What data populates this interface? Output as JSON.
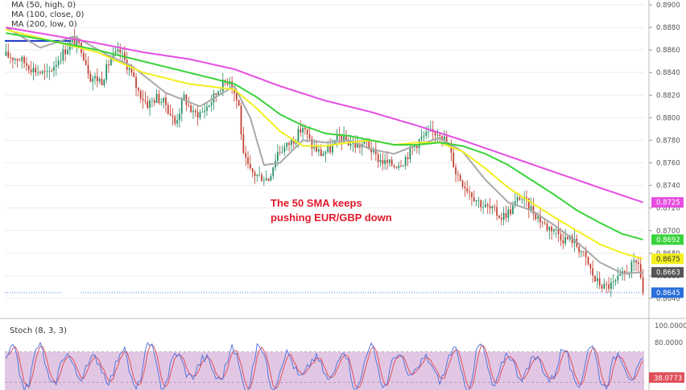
{
  "colors": {
    "up": "#1e8a5f",
    "down": "#c0392b",
    "ma50": "#a9a9a9",
    "ma100": "#f2ef1c",
    "ma200": "#39d33b",
    "ma_magenta": "#e64ee0",
    "stoch_k": "#5577dd",
    "stoch_d": "#e0505a",
    "stoch_bg": "#e2c7e4",
    "hline": "#1530c8"
  },
  "legend": {
    "ma1": "MA (50, high, 0)",
    "ma2": "MA (100, close, 0)",
    "ma3": "MA (200, low, 0)"
  },
  "annotation": {
    "line1": "The 50 SMA keeps",
    "line2": "pushing EUR/GBP down"
  },
  "stoch_label": "Stoch (8, 3, 3)",
  "chart_data": {
    "type": "candlestick",
    "symbol": "EUR/GBP",
    "ylim": [
      0.8635,
      0.89
    ],
    "y_ticks": [
      "0.8900",
      "0.8880",
      "0.8860",
      "0.8840",
      "0.8820",
      "0.8800",
      "0.8780",
      "0.8760",
      "0.8740",
      "0.8720",
      "0.8700",
      "0.8680",
      "0.8660",
      "0.8640"
    ],
    "price_path": [
      [
        0,
        0.8855
      ],
      [
        6,
        0.8852
      ],
      [
        12,
        0.8843
      ],
      [
        18,
        0.8838
      ],
      [
        24,
        0.8855
      ],
      [
        29,
        0.8868
      ],
      [
        33,
        0.8862
      ],
      [
        37,
        0.8836
      ],
      [
        42,
        0.8833
      ],
      [
        46,
        0.8853
      ],
      [
        50,
        0.8858
      ],
      [
        54,
        0.8843
      ],
      [
        58,
        0.8823
      ],
      [
        62,
        0.8812
      ],
      [
        66,
        0.8818
      ],
      [
        70,
        0.8812
      ],
      [
        74,
        0.8795
      ],
      [
        78,
        0.8818
      ],
      [
        82,
        0.8803
      ],
      [
        86,
        0.8805
      ],
      [
        90,
        0.8815
      ],
      [
        94,
        0.8828
      ],
      [
        98,
        0.8835
      ],
      [
        102,
        0.881
      ],
      [
        104,
        0.8765
      ],
      [
        107,
        0.8752
      ],
      [
        111,
        0.8748
      ],
      [
        115,
        0.8746
      ],
      [
        119,
        0.877
      ],
      [
        123,
        0.8775
      ],
      [
        127,
        0.8783
      ],
      [
        130,
        0.8792
      ],
      [
        134,
        0.8775
      ],
      [
        138,
        0.8768
      ],
      [
        142,
        0.8772
      ],
      [
        146,
        0.8783
      ],
      [
        150,
        0.8778
      ],
      [
        154,
        0.8775
      ],
      [
        158,
        0.8778
      ],
      [
        162,
        0.8765
      ],
      [
        166,
        0.876
      ],
      [
        170,
        0.8758
      ],
      [
        174,
        0.8762
      ],
      [
        178,
        0.8773
      ],
      [
        182,
        0.8782
      ],
      [
        186,
        0.8786
      ],
      [
        190,
        0.8788
      ],
      [
        194,
        0.8774
      ],
      [
        197,
        0.8752
      ],
      [
        201,
        0.874
      ],
      [
        205,
        0.873
      ],
      [
        209,
        0.8722
      ],
      [
        213,
        0.8718
      ],
      [
        217,
        0.8712
      ],
      [
        221,
        0.8718
      ],
      [
        225,
        0.873
      ],
      [
        229,
        0.8722
      ],
      [
        233,
        0.8712
      ],
      [
        237,
        0.8703
      ],
      [
        240,
        0.8702
      ],
      [
        244,
        0.8693
      ],
      [
        248,
        0.8692
      ],
      [
        252,
        0.8682
      ],
      [
        255,
        0.867
      ],
      [
        258,
        0.8656
      ],
      [
        262,
        0.865
      ],
      [
        266,
        0.8652
      ],
      [
        270,
        0.866
      ],
      [
        274,
        0.8668
      ],
      [
        277,
        0.8672
      ],
      [
        279,
        0.8645
      ]
    ],
    "series": [
      {
        "name": "MA (50, high, 0)",
        "path": [
          [
            0,
            0.888
          ],
          [
            15,
            0.8862
          ],
          [
            30,
            0.8872
          ],
          [
            45,
            0.8855
          ],
          [
            55,
            0.8846
          ],
          [
            70,
            0.8822
          ],
          [
            85,
            0.881
          ],
          [
            100,
            0.8828
          ],
          [
            107,
            0.88
          ],
          [
            113,
            0.8758
          ],
          [
            120,
            0.876
          ],
          [
            130,
            0.878
          ],
          [
            140,
            0.8778
          ],
          [
            150,
            0.878
          ],
          [
            160,
            0.8772
          ],
          [
            170,
            0.8768
          ],
          [
            180,
            0.8776
          ],
          [
            190,
            0.8782
          ],
          [
            200,
            0.877
          ],
          [
            210,
            0.8745
          ],
          [
            220,
            0.8725
          ],
          [
            230,
            0.8718
          ],
          [
            240,
            0.8705
          ],
          [
            250,
            0.869
          ],
          [
            260,
            0.8672
          ],
          [
            270,
            0.8662
          ],
          [
            279,
            0.8663
          ]
        ]
      },
      {
        "name": "MA (100, close, 0)",
        "path": [
          [
            0,
            0.8878
          ],
          [
            20,
            0.8868
          ],
          [
            40,
            0.8858
          ],
          [
            60,
            0.884
          ],
          [
            80,
            0.883
          ],
          [
            100,
            0.8825
          ],
          [
            110,
            0.8808
          ],
          [
            120,
            0.8788
          ],
          [
            130,
            0.8775
          ],
          [
            140,
            0.8775
          ],
          [
            150,
            0.8778
          ],
          [
            160,
            0.878
          ],
          [
            170,
            0.8776
          ],
          [
            180,
            0.8778
          ],
          [
            190,
            0.8778
          ],
          [
            200,
            0.877
          ],
          [
            210,
            0.8755
          ],
          [
            220,
            0.8738
          ],
          [
            230,
            0.8725
          ],
          [
            240,
            0.8712
          ],
          [
            250,
            0.87
          ],
          [
            260,
            0.8688
          ],
          [
            270,
            0.868
          ],
          [
            279,
            0.8675
          ]
        ]
      },
      {
        "name": "MA (200, low, 0)",
        "path": [
          [
            0,
            0.8875
          ],
          [
            20,
            0.8868
          ],
          [
            40,
            0.886
          ],
          [
            60,
            0.885
          ],
          [
            80,
            0.884
          ],
          [
            100,
            0.883
          ],
          [
            110,
            0.8818
          ],
          [
            120,
            0.8803
          ],
          [
            130,
            0.8793
          ],
          [
            140,
            0.8786
          ],
          [
            150,
            0.8784
          ],
          [
            160,
            0.878
          ],
          [
            170,
            0.8776
          ],
          [
            180,
            0.8776
          ],
          [
            190,
            0.8778
          ],
          [
            200,
            0.8775
          ],
          [
            210,
            0.8768
          ],
          [
            220,
            0.8758
          ],
          [
            230,
            0.8745
          ],
          [
            240,
            0.8732
          ],
          [
            250,
            0.8718
          ],
          [
            260,
            0.8707
          ],
          [
            270,
            0.8697
          ],
          [
            279,
            0.8692
          ]
        ]
      },
      {
        "name": "MA",
        "path": [
          [
            0,
            0.888
          ],
          [
            20,
            0.8873
          ],
          [
            40,
            0.8866
          ],
          [
            60,
            0.8858
          ],
          [
            80,
            0.8852
          ],
          [
            100,
            0.8843
          ],
          [
            120,
            0.8828
          ],
          [
            140,
            0.8815
          ],
          [
            160,
            0.8805
          ],
          [
            180,
            0.8793
          ],
          [
            200,
            0.878
          ],
          [
            220,
            0.8766
          ],
          [
            240,
            0.8752
          ],
          [
            260,
            0.8738
          ],
          [
            279,
            0.8725
          ]
        ]
      }
    ],
    "price_tags": [
      {
        "value": "0.8725",
        "bg": "#e64ee0",
        "fg": "#ffffff"
      },
      {
        "value": "0.8692",
        "bg": "#39d33b",
        "fg": "#ffffff"
      },
      {
        "value": "0.8675",
        "bg": "#f2ef1c",
        "fg": "#333333"
      },
      {
        "value": "0.8663",
        "bg": "#555555",
        "fg": "#ffffff"
      },
      {
        "value": "0.8645",
        "bg": "#2a6fdb",
        "fg": "#ffffff"
      }
    ],
    "hline_price": 0.8868,
    "current_price_line": 0.8645,
    "stoch": {
      "ylim": [
        0,
        100
      ],
      "y_ticks": [
        "100.0000",
        "80.0000"
      ],
      "current": "38.0773",
      "levels": [
        20,
        80
      ]
    }
  }
}
